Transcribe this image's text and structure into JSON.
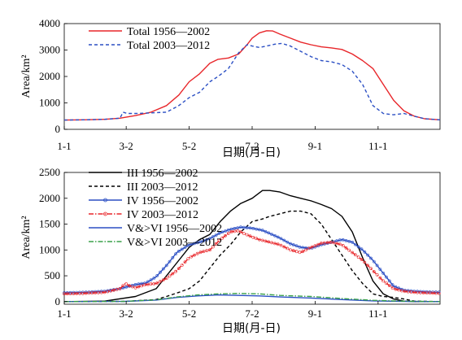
{
  "colors": {
    "axis": "#000000",
    "red": "#e8262a",
    "blue": "#2b4fc4",
    "black": "#000000",
    "green": "#3aa14a"
  },
  "chart_data": [
    {
      "type": "line",
      "ylabel": "Area/km²",
      "xlabel": "日期(月-日)",
      "xlim": [
        1,
        365
      ],
      "ylim": [
        0,
        4000
      ],
      "xticks": [
        {
          "day": 1,
          "label": "1-1"
        },
        {
          "day": 61,
          "label": "3-2"
        },
        {
          "day": 122,
          "label": "5-2"
        },
        {
          "day": 183,
          "label": "7-2"
        },
        {
          "day": 244,
          "label": "9-1"
        },
        {
          "day": 305,
          "label": "11-1"
        }
      ],
      "yticks": [
        0,
        1000,
        2000,
        3000,
        4000
      ],
      "legend_position": "top-left",
      "series": [
        {
          "name": "Total 1956—2002",
          "color": "#e8262a",
          "dash": "solid",
          "x": [
            1,
            20,
            40,
            55,
            70,
            85,
            100,
            112,
            122,
            132,
            142,
            150,
            160,
            170,
            178,
            183,
            190,
            197,
            203,
            210,
            220,
            230,
            240,
            250,
            260,
            270,
            280,
            290,
            300,
            310,
            320,
            330,
            340,
            350,
            365
          ],
          "y": [
            350,
            360,
            380,
            420,
            520,
            650,
            900,
            1300,
            1800,
            2100,
            2500,
            2650,
            2700,
            2850,
            3200,
            3450,
            3650,
            3730,
            3720,
            3600,
            3450,
            3300,
            3200,
            3120,
            3080,
            3020,
            2850,
            2600,
            2300,
            1700,
            1100,
            700,
            500,
            400,
            360
          ]
        },
        {
          "name": "Total 2003—2012",
          "color": "#2b4fc4",
          "dash": "dashed",
          "x": [
            1,
            20,
            40,
            55,
            58,
            62,
            70,
            85,
            100,
            112,
            122,
            132,
            142,
            150,
            160,
            170,
            178,
            183,
            190,
            197,
            205,
            212,
            220,
            230,
            240,
            250,
            260,
            270,
            280,
            290,
            300,
            310,
            320,
            330,
            340,
            350,
            365
          ],
          "y": [
            350,
            360,
            380,
            420,
            650,
            600,
            600,
            620,
            650,
            900,
            1200,
            1400,
            1800,
            2000,
            2300,
            2900,
            3200,
            3150,
            3100,
            3150,
            3220,
            3250,
            3150,
            2950,
            2750,
            2600,
            2550,
            2450,
            2200,
            1700,
            900,
            600,
            550,
            600,
            500,
            400,
            360
          ]
        }
      ]
    },
    {
      "type": "line",
      "ylabel": "Area/km²",
      "xlabel": "日期(月-日)",
      "xlim": [
        1,
        365
      ],
      "ylim": [
        -50,
        2500
      ],
      "xticks": [
        {
          "day": 1,
          "label": "1-1"
        },
        {
          "day": 61,
          "label": "3-2"
        },
        {
          "day": 122,
          "label": "5-2"
        },
        {
          "day": 183,
          "label": "7-2"
        },
        {
          "day": 244,
          "label": "9-1"
        },
        {
          "day": 305,
          "label": "11-1"
        }
      ],
      "yticks": [
        0,
        500,
        1000,
        1500,
        2000,
        2500
      ],
      "legend_position": "top-left",
      "series": [
        {
          "name": "III 1956—2002",
          "color": "#000000",
          "dash": "solid",
          "marker": "none",
          "x": [
            1,
            40,
            70,
            90,
            100,
            112,
            122,
            132,
            142,
            152,
            162,
            172,
            183,
            193,
            200,
            210,
            220,
            230,
            240,
            250,
            260,
            270,
            280,
            290,
            300,
            310,
            320,
            330,
            340,
            365
          ],
          "y": [
            0,
            10,
            100,
            250,
            500,
            800,
            1050,
            1200,
            1300,
            1550,
            1750,
            1900,
            2000,
            2150,
            2150,
            2120,
            2050,
            2000,
            1950,
            1880,
            1800,
            1650,
            1350,
            850,
            400,
            150,
            50,
            10,
            0,
            0
          ]
        },
        {
          "name": "III 2003—2012",
          "color": "#000000",
          "dash": "dashed",
          "marker": "none",
          "x": [
            1,
            60,
            90,
            100,
            112,
            122,
            132,
            142,
            152,
            162,
            172,
            183,
            193,
            200,
            210,
            220,
            230,
            240,
            250,
            260,
            270,
            280,
            290,
            300,
            310,
            320,
            330,
            340,
            365
          ],
          "y": [
            0,
            5,
            40,
            100,
            180,
            250,
            400,
            650,
            900,
            1100,
            1350,
            1550,
            1600,
            1650,
            1700,
            1750,
            1750,
            1700,
            1500,
            1200,
            900,
            600,
            350,
            150,
            100,
            80,
            50,
            10,
            0
          ]
        },
        {
          "name": "IV 1956—2002",
          "color": "#2b4fc4",
          "dash": "solid",
          "marker": "circle",
          "x": [
            1,
            20,
            40,
            55,
            70,
            80,
            90,
            100,
            110,
            122,
            132,
            142,
            152,
            162,
            172,
            183,
            193,
            200,
            210,
            220,
            230,
            240,
            250,
            260,
            270,
            280,
            290,
            300,
            310,
            320,
            330,
            340,
            350,
            365
          ],
          "y": [
            170,
            180,
            200,
            250,
            330,
            360,
            480,
            700,
            950,
            1100,
            1150,
            1220,
            1330,
            1400,
            1440,
            1420,
            1380,
            1320,
            1230,
            1120,
            1050,
            1030,
            1100,
            1150,
            1200,
            1150,
            1000,
            800,
            550,
            300,
            220,
            200,
            190,
            180
          ]
        },
        {
          "name": "IV 2003—2012",
          "color": "#e8262a",
          "dash": "dashdot",
          "marker": "circle",
          "x": [
            1,
            20,
            40,
            55,
            60,
            65,
            70,
            80,
            90,
            100,
            110,
            122,
            132,
            142,
            152,
            162,
            170,
            175,
            183,
            190,
            200,
            210,
            220,
            230,
            240,
            250,
            260,
            270,
            280,
            290,
            300,
            310,
            320,
            330,
            340,
            350,
            365
          ],
          "y": [
            150,
            160,
            180,
            250,
            350,
            300,
            270,
            330,
            350,
            450,
            600,
            850,
            950,
            1000,
            1200,
            1350,
            1370,
            1320,
            1250,
            1200,
            1150,
            1100,
            1000,
            950,
            1050,
            1130,
            1150,
            1100,
            950,
            800,
            600,
            400,
            250,
            200,
            180,
            170,
            160
          ]
        },
        {
          "name": "V&>VI 1956—2002",
          "color": "#2b4fc4",
          "dash": "solid",
          "marker": "none",
          "x": [
            1,
            60,
            90,
            110,
            130,
            150,
            170,
            190,
            210,
            240,
            270,
            300,
            330,
            365
          ],
          "y": [
            0,
            5,
            30,
            80,
            110,
            130,
            120,
            110,
            90,
            70,
            40,
            15,
            5,
            0
          ]
        },
        {
          "name": "V&>VI 2003—2012",
          "color": "#3aa14a",
          "dash": "dashdot",
          "marker": "none",
          "x": [
            1,
            60,
            90,
            110,
            130,
            150,
            170,
            190,
            210,
            240,
            270,
            300,
            330,
            365
          ],
          "y": [
            0,
            5,
            35,
            90,
            130,
            150,
            160,
            150,
            120,
            100,
            60,
            25,
            8,
            0
          ]
        }
      ]
    }
  ]
}
